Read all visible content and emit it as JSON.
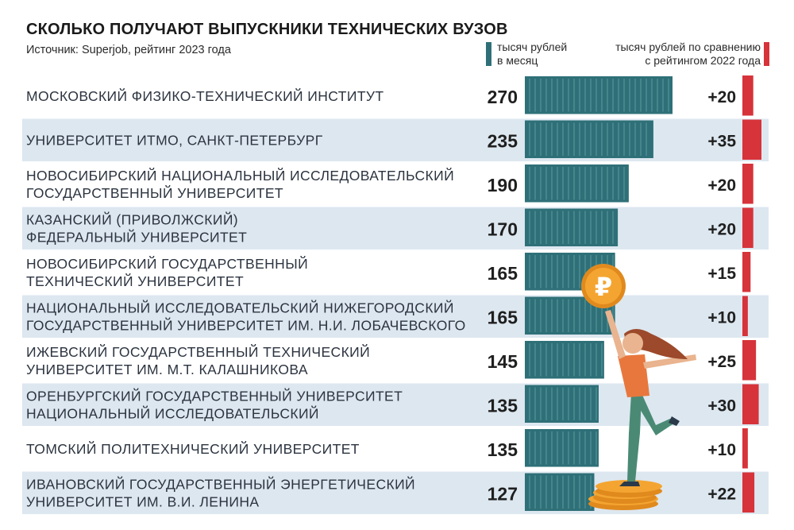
{
  "title": "СКОЛЬКО ПОЛУЧАЮТ ВЫПУСКНИКИ ТЕХНИЧЕСКИХ ВУЗОВ",
  "source": "Источник: Superjob, рейтинг 2023 года",
  "legend": {
    "salary_line1": "тысяч рублей",
    "salary_line2": "в месяц",
    "change_line1": "тысяч рублей по сравнению",
    "change_line2": "с рейтингом 2022 года"
  },
  "colors": {
    "bar": "#2f7078",
    "change_bar": "#d6333a",
    "row_band": "#dde7f0",
    "coin": "#f4a531"
  },
  "chart_data": {
    "type": "bar",
    "orientation": "horizontal",
    "categories": [
      [
        "МОСКОВСКИЙ ФИЗИКО-ТЕХНИЧЕСКИЙ ИНСТИТУТ"
      ],
      [
        "УНИВЕРСИТЕТ ИТМО, САНКТ-ПЕТЕРБУРГ"
      ],
      [
        "НОВОСИБИРСКИЙ НАЦИОНАЛЬНЫЙ ИССЛЕДОВАТЕЛЬСКИЙ",
        "ГОСУДАРСТВЕННЫЙ УНИВЕРСИТЕТ"
      ],
      [
        "КАЗАНСКИЙ (ПРИВОЛЖСКИЙ)",
        "ФЕДЕРАЛЬНЫЙ УНИВЕРСИТЕТ"
      ],
      [
        "НОВОСИБИРСКИЙ ГОСУДАРСТВЕННЫЙ",
        "ТЕХНИЧЕСКИЙ УНИВЕРСИТЕТ"
      ],
      [
        "НАЦИОНАЛЬНЫЙ ИССЛЕДОВАТЕЛЬСКИЙ НИЖЕГОРОДСКИЙ",
        "ГОСУДАРСТВЕННЫЙ УНИВЕРСИТЕТ ИМ. Н.И. ЛОБАЧЕВСКОГО"
      ],
      [
        "ИЖЕВСКИЙ ГОСУДАРСТВЕННЫЙ ТЕХНИЧЕСКИЙ",
        "УНИВЕРСИТЕТ ИМ. М.Т. КАЛАШНИКОВА"
      ],
      [
        "ОРЕНБУРГСКИЙ ГОСУДАРСТВЕННЫЙ УНИВЕРСИТЕТ",
        "НАЦИОНАЛЬНЫЙ ИССЛЕДОВАТЕЛЬСКИЙ"
      ],
      [
        "ТОМСКИЙ ПОЛИТЕХНИЧЕСКИЙ УНИВЕРСИТЕТ"
      ],
      [
        "ИВАНОВСКИЙ ГОСУДАРСТВЕННЫЙ ЭНЕРГЕТИЧЕСКИЙ",
        "УНИВЕРСИТЕТ ИМ. В.И. ЛЕНИНА"
      ]
    ],
    "series": [
      {
        "name": "тысяч рублей в месяц",
        "values": [
          270,
          235,
          190,
          170,
          165,
          165,
          145,
          135,
          135,
          127
        ]
      },
      {
        "name": "тысяч рублей по сравнению с рейтингом 2022 года",
        "values": [
          20,
          35,
          20,
          20,
          15,
          10,
          25,
          30,
          10,
          22
        ]
      }
    ],
    "value_labels": [
      "270",
      "235",
      "190",
      "170",
      "165",
      "165",
      "145",
      "135",
      "135",
      "127"
    ],
    "change_labels": [
      "+20",
      "+35",
      "+20",
      "+20",
      "+15",
      "+10",
      "+25",
      "+30",
      "+10",
      "+22"
    ],
    "coin_symbol": "₽"
  }
}
